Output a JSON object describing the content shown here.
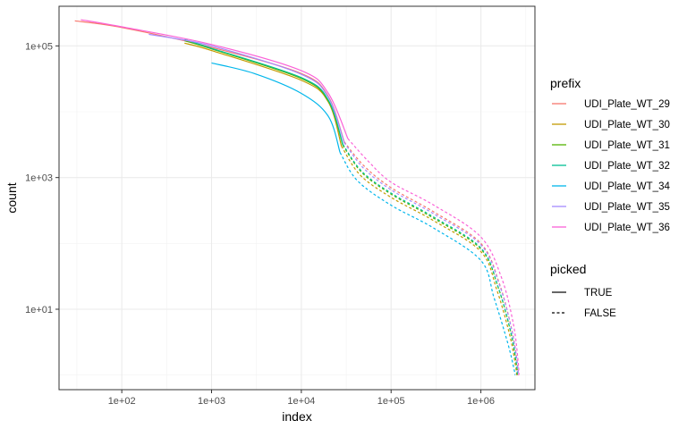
{
  "chart_data": {
    "type": "line",
    "xlabel": "index",
    "ylabel": "count",
    "x_scale": "log10",
    "y_scale": "log10",
    "xlim": [
      20,
      4000000
    ],
    "ylim": [
      0.6,
      400000
    ],
    "x_ticks": [
      {
        "value": 100,
        "label": "1e+02"
      },
      {
        "value": 1000,
        "label": "1e+03"
      },
      {
        "value": 10000,
        "label": "1e+04"
      },
      {
        "value": 100000,
        "label": "1e+05"
      },
      {
        "value": 1000000,
        "label": "1e+06"
      }
    ],
    "y_ticks": [
      {
        "value": 10,
        "label": "1e+01"
      },
      {
        "value": 1000,
        "label": "1e+03"
      },
      {
        "value": 100000,
        "label": "1e+05"
      }
    ],
    "grid": true,
    "legend_position": "right",
    "legend": {
      "color_title": "prefix",
      "linetype_title": "picked",
      "linetypes": [
        {
          "label": "TRUE",
          "dash": "solid"
        },
        {
          "label": "FALSE",
          "dash": "dashed"
        }
      ]
    },
    "series": [
      {
        "name": "UDI_Plate_WT_29",
        "color": "#F8766D",
        "picked": [
          [
            30,
            240000
          ],
          [
            100,
            190000
          ],
          [
            1000,
            95000
          ],
          [
            10000,
            38000
          ],
          [
            20000,
            17000
          ],
          [
            30000,
            3500
          ]
        ],
        "unpicked": [
          [
            30000,
            3500
          ],
          [
            50000,
            1500
          ],
          [
            100000,
            700
          ],
          [
            300000,
            300
          ],
          [
            1000000,
            100
          ],
          [
            1600000,
            25
          ],
          [
            2200000,
            5
          ],
          [
            2550000,
            1.5
          ],
          [
            2600000,
            1
          ]
        ]
      },
      {
        "name": "UDI_Plate_WT_30",
        "color": "#C49A00",
        "picked": [
          [
            500,
            110000
          ],
          [
            1000,
            85000
          ],
          [
            10000,
            30000
          ],
          [
            20000,
            14000
          ],
          [
            28000,
            3000
          ]
        ],
        "unpicked": [
          [
            28000,
            3000
          ],
          [
            45000,
            1100
          ],
          [
            100000,
            500
          ],
          [
            300000,
            220
          ],
          [
            1000000,
            75
          ],
          [
            1500000,
            20
          ],
          [
            2100000,
            4
          ],
          [
            2450000,
            1.3
          ],
          [
            2500000,
            1
          ]
        ]
      },
      {
        "name": "UDI_Plate_WT_31",
        "color": "#53B400",
        "picked": [
          [
            500,
            120000
          ],
          [
            1000,
            90000
          ],
          [
            10000,
            32000
          ],
          [
            20000,
            14500
          ],
          [
            29000,
            3100
          ]
        ],
        "unpicked": [
          [
            29000,
            3100
          ],
          [
            47000,
            1200
          ],
          [
            100000,
            560
          ],
          [
            300000,
            240
          ],
          [
            1000000,
            82
          ],
          [
            1550000,
            22
          ],
          [
            2150000,
            4.5
          ],
          [
            2500000,
            1.4
          ],
          [
            2550000,
            1
          ]
        ]
      },
      {
        "name": "UDI_Plate_WT_32",
        "color": "#00C094",
        "picked": [
          [
            500,
            125000
          ],
          [
            1000,
            92000
          ],
          [
            10000,
            33000
          ],
          [
            20000,
            15000
          ],
          [
            29000,
            3200
          ]
        ],
        "unpicked": [
          [
            29000,
            3200
          ],
          [
            47000,
            1250
          ],
          [
            100000,
            580
          ],
          [
            300000,
            250
          ],
          [
            1000000,
            85
          ],
          [
            1550000,
            22
          ],
          [
            2150000,
            4.5
          ],
          [
            2500000,
            1.4
          ],
          [
            2550000,
            1
          ]
        ]
      },
      {
        "name": "UDI_Plate_WT_34",
        "color": "#00B6EB",
        "picked": [
          [
            1000,
            55000
          ],
          [
            3000,
            38000
          ],
          [
            10000,
            19000
          ],
          [
            20000,
            8500
          ],
          [
            27000,
            2400
          ]
        ],
        "unpicked": [
          [
            27000,
            2400
          ],
          [
            42000,
            900
          ],
          [
            100000,
            380
          ],
          [
            300000,
            170
          ],
          [
            1000000,
            55
          ],
          [
            1400000,
            15
          ],
          [
            2000000,
            3
          ],
          [
            2350000,
            1.2
          ],
          [
            2400000,
            1
          ]
        ]
      },
      {
        "name": "UDI_Plate_WT_35",
        "color": "#A58AFF",
        "picked": [
          [
            200,
            150000
          ],
          [
            1000,
            100000
          ],
          [
            10000,
            37000
          ],
          [
            20000,
            16500
          ],
          [
            30000,
            3400
          ]
        ],
        "unpicked": [
          [
            30000,
            3400
          ],
          [
            49000,
            1400
          ],
          [
            100000,
            650
          ],
          [
            300000,
            280
          ],
          [
            1000000,
            95
          ],
          [
            1600000,
            24
          ],
          [
            2200000,
            5
          ],
          [
            2550000,
            1.5
          ],
          [
            2600000,
            1
          ]
        ]
      },
      {
        "name": "UDI_Plate_WT_36",
        "color": "#FB61D7",
        "picked": [
          [
            35,
            250000
          ],
          [
            100,
            195000
          ],
          [
            1000,
            105000
          ],
          [
            10000,
            42000
          ],
          [
            20000,
            19000
          ],
          [
            33000,
            3900
          ]
        ],
        "unpicked": [
          [
            33000,
            3900
          ],
          [
            55000,
            1800
          ],
          [
            100000,
            850
          ],
          [
            300000,
            380
          ],
          [
            1000000,
            125
          ],
          [
            1700000,
            30
          ],
          [
            2300000,
            6
          ],
          [
            2600000,
            1.6
          ],
          [
            2650000,
            1
          ]
        ]
      }
    ]
  }
}
